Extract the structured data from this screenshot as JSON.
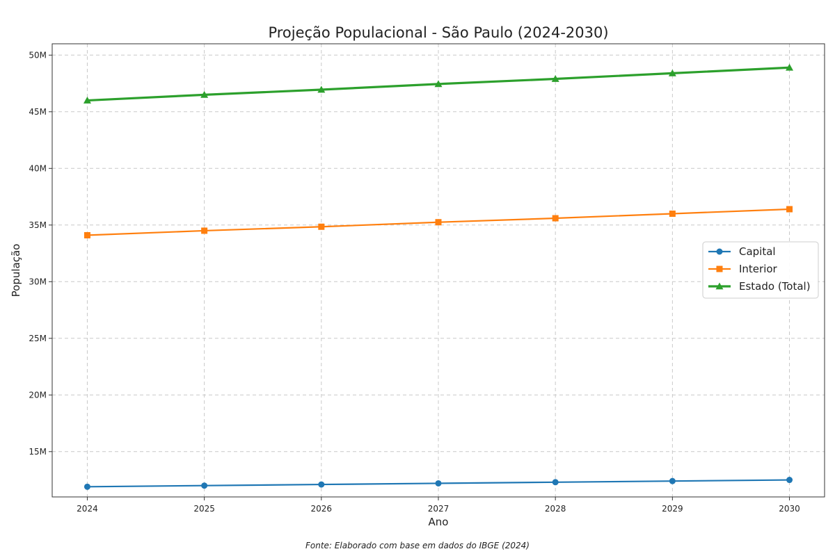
{
  "chart_data": {
    "type": "line",
    "title": "Projeção Populacional - São Paulo (2024-2030)",
    "xlabel": "Ano",
    "ylabel": "População",
    "x": [
      2024,
      2025,
      2026,
      2027,
      2028,
      2029,
      2030
    ],
    "x_tick_labels": [
      "2024",
      "2025",
      "2026",
      "2027",
      "2028",
      "2029",
      "2030"
    ],
    "xlim": [
      2023.7,
      2030.3
    ],
    "ylim": [
      11000000,
      51000000
    ],
    "y_ticks": [
      15000000,
      20000000,
      25000000,
      30000000,
      35000000,
      40000000,
      45000000,
      50000000
    ],
    "y_tick_labels": [
      "15M",
      "20M",
      "25M",
      "30M",
      "35M",
      "40M",
      "45M",
      "50M"
    ],
    "grid": true,
    "legend_position": "center-right",
    "series": [
      {
        "name": "Capital",
        "color": "#1f77b4",
        "marker": "circle",
        "values": [
          11900000,
          12000000,
          12100000,
          12200000,
          12300000,
          12400000,
          12500000
        ]
      },
      {
        "name": "Interior",
        "color": "#ff7f0e",
        "marker": "square",
        "values": [
          34100000,
          34500000,
          34850000,
          35250000,
          35600000,
          36000000,
          36400000
        ]
      },
      {
        "name": "Estado (Total)",
        "color": "#2ca02c",
        "marker": "triangle",
        "values": [
          46000000,
          46500000,
          46950000,
          47450000,
          47900000,
          48400000,
          48900000
        ]
      }
    ],
    "source_note": "Fonte: Elaborado com base em dados do IBGE (2024)"
  }
}
